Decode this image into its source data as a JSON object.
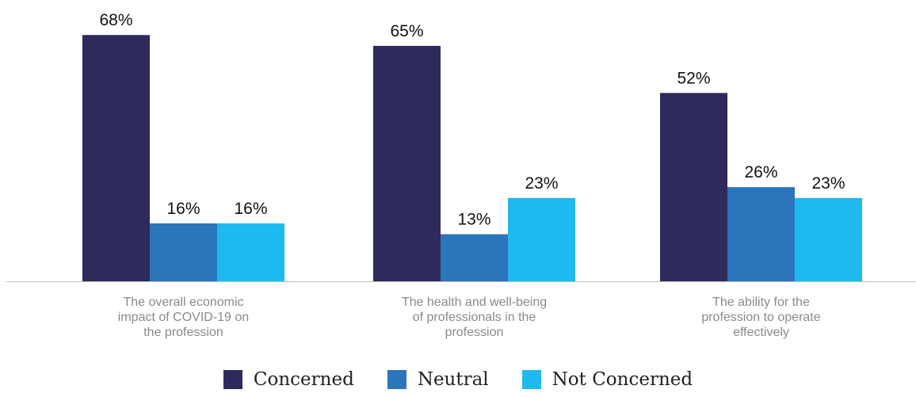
{
  "chart_data": {
    "type": "bar",
    "categories": [
      [
        "The overall economic",
        "impact of COVID-19 on",
        "the profession"
      ],
      [
        "The health and well-being",
        "of professionals in the",
        "profession"
      ],
      [
        "The ability for the",
        "profession to operate",
        "effectively"
      ]
    ],
    "series": [
      {
        "name": "Concerned",
        "color": "#2e2a5c",
        "values": [
          68,
          65,
          52
        ]
      },
      {
        "name": "Neutral",
        "color": "#2a75bb",
        "values": [
          16,
          13,
          26
        ]
      },
      {
        "name": "Not Concerned",
        "color": "#1eb9ee",
        "values": [
          16,
          23,
          23
        ]
      }
    ],
    "value_suffix": "%",
    "ylim": [
      0,
      75
    ],
    "grid": false,
    "legend_position": "bottom-center"
  }
}
